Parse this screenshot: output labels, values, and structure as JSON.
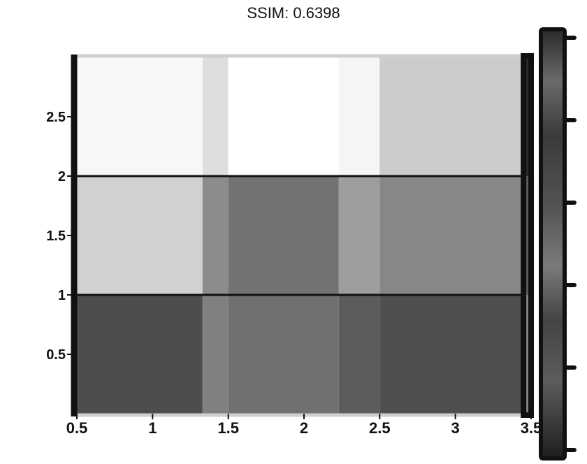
{
  "chart_data": {
    "type": "heatmap",
    "title": "SSIM: 0.6398",
    "xlabel": "",
    "ylabel": "",
    "x_tick_labels": [
      "0.5",
      "1",
      "1.5",
      "2",
      "2.5",
      "3",
      "3.5"
    ],
    "y_tick_labels_left": [
      "2.5",
      "2",
      "1.5",
      "1",
      "0.5"
    ],
    "colormap": "grayscale",
    "colorbar": true,
    "grid": false,
    "rows": [
      [
        0.97,
        0.87,
        1.0,
        0.96,
        0.8,
        0.17
      ],
      [
        0.82,
        0.55,
        0.45,
        0.62,
        0.53,
        0.37
      ],
      [
        0.3,
        0.5,
        0.44,
        0.36,
        0.31,
        0.53
      ]
    ],
    "column_edges": [
      0.5,
      1.33,
      1.5,
      2.23,
      2.5,
      3.45,
      3.5
    ],
    "row_edges": [
      3.0,
      2.0,
      1.0,
      0.0
    ]
  }
}
